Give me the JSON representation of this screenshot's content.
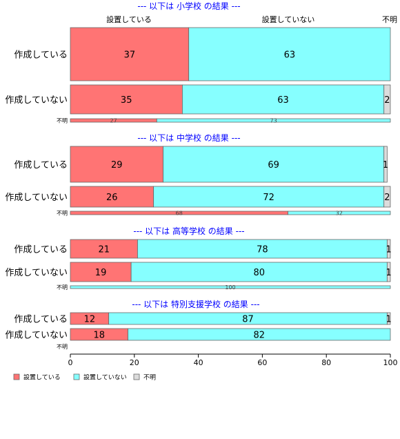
{
  "chart_data": {
    "type": "bar",
    "orientation": "horizontal",
    "stacked": true,
    "xlim": [
      0,
      100
    ],
    "xticks": [
      "0",
      "20",
      "40",
      "60",
      "80",
      "100"
    ],
    "column_headers": [
      "設置している",
      "設置していない",
      "不明"
    ],
    "legend": {
      "position": "bottom-left",
      "entries": [
        "設置している",
        "設置していない",
        "不明"
      ]
    },
    "colors": [
      "#ff7474",
      "#86ffff",
      "#dcdcdc"
    ],
    "panels": [
      {
        "title": "--- 以下は 小学校 の結果 ---",
        "rows": [
          {
            "label": "作成している",
            "values": [
              37,
              63,
              0
            ],
            "labels": [
              "37",
              "63",
              ""
            ]
          },
          {
            "label": "作成していない",
            "values": [
              35,
              63,
              2
            ],
            "labels": [
              "35",
              "63",
              "2"
            ]
          },
          {
            "label": "不明",
            "values": [
              27,
              73,
              0
            ],
            "labels": [
              "27",
              "73",
              ""
            ]
          }
        ]
      },
      {
        "title": "--- 以下は 中学校 の結果 ---",
        "rows": [
          {
            "label": "作成している",
            "values": [
              29,
              69,
              1
            ],
            "labels": [
              "29",
              "69",
              "1"
            ]
          },
          {
            "label": "作成していない",
            "values": [
              26,
              72,
              2
            ],
            "labels": [
              "26",
              "72",
              "2"
            ]
          },
          {
            "label": "不明",
            "values": [
              68,
              32,
              0
            ],
            "labels": [
              "68",
              "32",
              ""
            ]
          }
        ]
      },
      {
        "title": "--- 以下は 高等学校 の結果 ---",
        "rows": [
          {
            "label": "作成している",
            "values": [
              21,
              78,
              1
            ],
            "labels": [
              "21",
              "78",
              "1"
            ]
          },
          {
            "label": "作成していない",
            "values": [
              19,
              80,
              1
            ],
            "labels": [
              "19",
              "80",
              "1"
            ]
          },
          {
            "label": "不明",
            "values": [
              0,
              100,
              0
            ],
            "labels": [
              "",
              "100",
              ""
            ]
          }
        ]
      },
      {
        "title": "--- 以下は 特別支援学校 の結果 ---",
        "rows": [
          {
            "label": "作成している",
            "values": [
              12,
              87,
              1
            ],
            "labels": [
              "12",
              "87",
              "1"
            ]
          },
          {
            "label": "作成していない",
            "values": [
              18,
              82,
              0
            ],
            "labels": [
              "18",
              "82",
              ""
            ]
          },
          {
            "label": "不明",
            "values": [
              0,
              0,
              0
            ],
            "labels": [
              "",
              "",
              ""
            ]
          }
        ]
      }
    ]
  }
}
